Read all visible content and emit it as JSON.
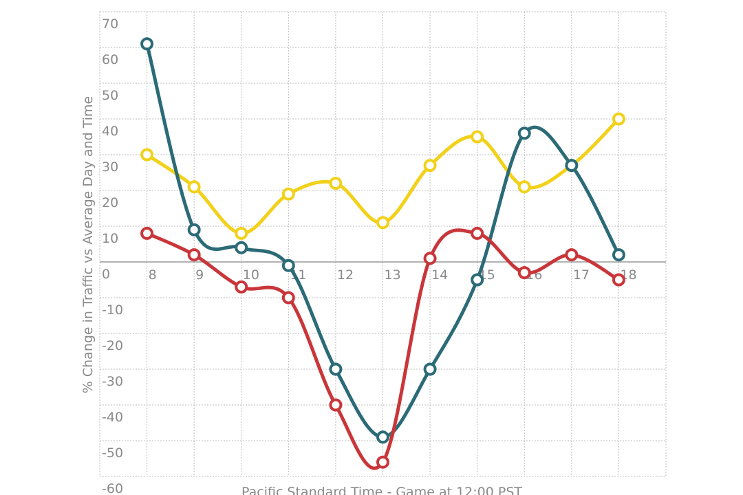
{
  "chart_data": {
    "type": "line",
    "x_label": "Pacific Standard Time - Game at 12:00 PST",
    "y_label": "% Change in Traffic vs Average Day and Time",
    "x": [
      8,
      9,
      10,
      11,
      12,
      13,
      14,
      15,
      16,
      17,
      18
    ],
    "xlim": [
      7,
      19
    ],
    "xticks": [
      8,
      9,
      10,
      11,
      12,
      13,
      14,
      15,
      16,
      17,
      18
    ],
    "ylim": [
      -60,
      70
    ],
    "yticks": [
      -60,
      -50,
      -40,
      -30,
      -20,
      -10,
      0,
      10,
      20,
      30,
      40,
      50,
      60,
      70
    ],
    "grid": true,
    "smooth": true,
    "series": [
      {
        "color": "#f2d11b",
        "values": [
          30,
          21,
          8,
          19,
          22,
          11,
          27,
          35,
          21,
          27,
          40
        ]
      },
      {
        "color": "#2b6b77",
        "values": [
          61,
          9,
          4,
          -1,
          -30,
          -49,
          -30,
          -5,
          36,
          27,
          2
        ]
      },
      {
        "color": "#c9363a",
        "values": [
          8,
          2,
          -7,
          -10,
          -40,
          -56,
          1,
          8,
          -3,
          2,
          -5
        ]
      }
    ]
  }
}
